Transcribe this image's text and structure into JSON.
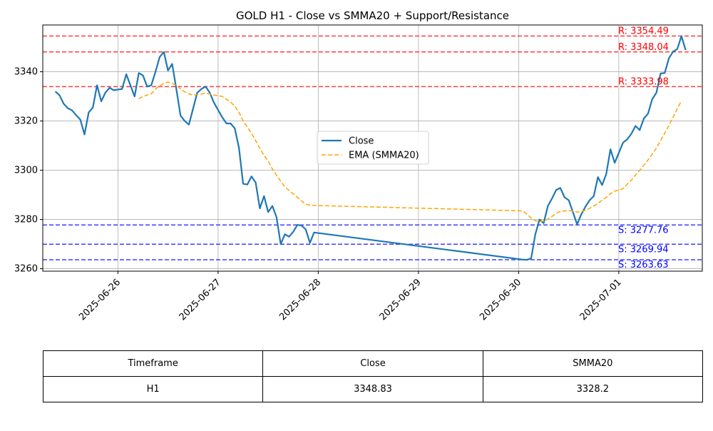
{
  "chart_data": {
    "type": "line",
    "title": "GOLD H1 - Close vs SMMA20 + Support/Resistance",
    "xlabel": "",
    "ylabel": "",
    "x_range": [
      "2025-06-25T06:00",
      "2025-07-01T20:00"
    ],
    "y_range": [
      3259,
      3359
    ],
    "y_ticks": [
      3260,
      3280,
      3300,
      3320,
      3340
    ],
    "x_ticks": [
      "2025-06-26",
      "2025-06-27",
      "2025-06-28",
      "2025-06-29",
      "2025-06-30",
      "2025-07-01"
    ],
    "grid": true,
    "legend_position": "center-right",
    "series": [
      {
        "name": "Close",
        "color": "#1f77b4",
        "style": "solid",
        "points": [
          [
            "2025-06-25T09:00",
            3332
          ],
          [
            "2025-06-25T10:00",
            3330.5
          ],
          [
            "2025-06-25T11:00",
            3327
          ],
          [
            "2025-06-25T12:00",
            3325.2
          ],
          [
            "2025-06-25T13:00",
            3324.3
          ],
          [
            "2025-06-25T14:00",
            3322.4
          ],
          [
            "2025-06-25T15:00",
            3320.5
          ],
          [
            "2025-06-25T16:00",
            3314.5
          ],
          [
            "2025-06-25T17:00",
            3323.5
          ],
          [
            "2025-06-25T18:00",
            3325.5
          ],
          [
            "2025-06-25T19:00",
            3334.5
          ],
          [
            "2025-06-25T20:00",
            3328
          ],
          [
            "2025-06-25T21:00",
            3331.5
          ],
          [
            "2025-06-25T22:00",
            3333.5
          ],
          [
            "2025-06-25T23:00",
            3332.5
          ],
          [
            "2025-06-26T01:00",
            3333
          ],
          [
            "2025-06-26T02:00",
            3339
          ],
          [
            "2025-06-26T03:00",
            3334.5
          ],
          [
            "2025-06-26T04:00",
            3330
          ],
          [
            "2025-06-26T05:00",
            3339.5
          ],
          [
            "2025-06-26T06:00",
            3338.5
          ],
          [
            "2025-06-26T07:00",
            3334
          ],
          [
            "2025-06-26T08:00",
            3334.5
          ],
          [
            "2025-06-26T09:00",
            3340
          ],
          [
            "2025-06-26T10:00",
            3346
          ],
          [
            "2025-06-26T11:00",
            3348
          ],
          [
            "2025-06-26T12:00",
            3340.5
          ],
          [
            "2025-06-26T13:00",
            3343.2
          ],
          [
            "2025-06-26T14:00",
            3333
          ],
          [
            "2025-06-26T15:00",
            3322.2
          ],
          [
            "2025-06-26T16:00",
            3320
          ],
          [
            "2025-06-26T17:00",
            3318.5
          ],
          [
            "2025-06-26T18:00",
            3325
          ],
          [
            "2025-06-26T19:00",
            3331.5
          ],
          [
            "2025-06-26T20:00",
            3333
          ],
          [
            "2025-06-26T21:00",
            3334
          ],
          [
            "2025-06-26T22:00",
            3331.5
          ],
          [
            "2025-06-26T23:00",
            3327.5
          ],
          [
            "2025-06-27T01:00",
            3321.5
          ],
          [
            "2025-06-27T02:00",
            3319
          ],
          [
            "2025-06-27T03:00",
            3319
          ],
          [
            "2025-06-27T04:00",
            3317
          ],
          [
            "2025-06-27T05:00",
            3309
          ],
          [
            "2025-06-27T06:00",
            3294.5
          ],
          [
            "2025-06-27T07:00",
            3294.2
          ],
          [
            "2025-06-27T08:00",
            3297.5
          ],
          [
            "2025-06-27T09:00",
            3295
          ],
          [
            "2025-06-27T10:00",
            3284.5
          ],
          [
            "2025-06-27T11:00",
            3289.5
          ],
          [
            "2025-06-27T12:00",
            3283
          ],
          [
            "2025-06-27T13:00",
            3285.5
          ],
          [
            "2025-06-27T14:00",
            3281
          ],
          [
            "2025-06-27T15:00",
            3270
          ],
          [
            "2025-06-27T16:00",
            3274
          ],
          [
            "2025-06-27T17:00",
            3273
          ],
          [
            "2025-06-27T18:00",
            3275
          ],
          [
            "2025-06-27T19:00",
            3277.8
          ],
          [
            "2025-06-27T20:00",
            3277.5
          ],
          [
            "2025-06-27T21:00",
            3276
          ],
          [
            "2025-06-27T22:00",
            3270.5
          ],
          [
            "2025-06-27T23:00",
            3274.7
          ],
          [
            "2025-06-30T01:00",
            3263.7
          ],
          [
            "2025-06-30T02:00",
            3263.6
          ],
          [
            "2025-06-30T03:00",
            3264.2
          ],
          [
            "2025-06-30T04:00",
            3274
          ],
          [
            "2025-06-30T05:00",
            3280
          ],
          [
            "2025-06-30T06:00",
            3278.5
          ],
          [
            "2025-06-30T07:00",
            3285.5
          ],
          [
            "2025-06-30T08:00",
            3288.5
          ],
          [
            "2025-06-30T09:00",
            3292
          ],
          [
            "2025-06-30T10:00",
            3292.8
          ],
          [
            "2025-06-30T11:00",
            3289
          ],
          [
            "2025-06-30T12:00",
            3287.8
          ],
          [
            "2025-06-30T13:00",
            3283
          ],
          [
            "2025-06-30T14:00",
            3278
          ],
          [
            "2025-06-30T15:00",
            3282
          ],
          [
            "2025-06-30T16:00",
            3285.2
          ],
          [
            "2025-06-30T17:00",
            3287.8
          ],
          [
            "2025-06-30T18:00",
            3289.5
          ],
          [
            "2025-06-30T19:00",
            3297.2
          ],
          [
            "2025-06-30T20:00",
            3294
          ],
          [
            "2025-06-30T21:00",
            3298.5
          ],
          [
            "2025-06-30T22:00",
            3308.5
          ],
          [
            "2025-06-30T23:00",
            3303
          ],
          [
            "2025-07-01T01:00",
            3311.2
          ],
          [
            "2025-07-01T02:00",
            3312.5
          ],
          [
            "2025-07-01T03:00",
            3314.8
          ],
          [
            "2025-07-01T04:00",
            3318
          ],
          [
            "2025-07-01T05:00",
            3316.3
          ],
          [
            "2025-07-01T06:00",
            3321
          ],
          [
            "2025-07-01T07:00",
            3323
          ],
          [
            "2025-07-01T08:00",
            3328.8
          ],
          [
            "2025-07-01T09:00",
            3331.5
          ],
          [
            "2025-07-01T10:00",
            3339.3
          ],
          [
            "2025-07-01T11:00",
            3339.5
          ],
          [
            "2025-07-01T12:00",
            3345.5
          ],
          [
            "2025-07-01T13:00",
            3348.2
          ],
          [
            "2025-07-01T14:00",
            3349.2
          ],
          [
            "2025-07-01T15:00",
            3354.5
          ],
          [
            "2025-07-01T16:00",
            3348.83
          ]
        ]
      },
      {
        "name": "EMA (SMMA20)",
        "color": "#ffa500",
        "style": "dashed",
        "points": [
          [
            "2025-06-26T05:00",
            3329
          ],
          [
            "2025-06-26T06:00",
            3330
          ],
          [
            "2025-06-26T07:00",
            3330.5
          ],
          [
            "2025-06-26T08:00",
            3331
          ],
          [
            "2025-06-26T09:00",
            3333
          ],
          [
            "2025-06-26T10:00",
            3334.3
          ],
          [
            "2025-06-26T11:00",
            3335.3
          ],
          [
            "2025-06-26T12:00",
            3335.8
          ],
          [
            "2025-06-26T13:00",
            3335.3
          ],
          [
            "2025-06-26T14:00",
            3334.5
          ],
          [
            "2025-06-26T15:00",
            3333
          ],
          [
            "2025-06-26T16:00",
            3331.8
          ],
          [
            "2025-06-26T17:00",
            3331
          ],
          [
            "2025-06-26T18:00",
            3330.5
          ],
          [
            "2025-06-26T19:00",
            3330.8
          ],
          [
            "2025-06-26T20:00",
            3331
          ],
          [
            "2025-06-26T21:00",
            3331.2
          ],
          [
            "2025-06-26T22:00",
            3331
          ],
          [
            "2025-06-26T23:00",
            3330.5
          ],
          [
            "2025-06-27T01:00",
            3330
          ],
          [
            "2025-06-27T02:00",
            3328.8
          ],
          [
            "2025-06-27T03:00",
            3327.7
          ],
          [
            "2025-06-27T04:00",
            3326
          ],
          [
            "2025-06-27T05:00",
            3323.5
          ],
          [
            "2025-06-27T06:00",
            3320
          ],
          [
            "2025-06-27T07:00",
            3317.5
          ],
          [
            "2025-06-27T08:00",
            3315
          ],
          [
            "2025-06-27T09:00",
            3312
          ],
          [
            "2025-06-27T10:00",
            3309
          ],
          [
            "2025-06-27T11:00",
            3306
          ],
          [
            "2025-06-27T12:00",
            3303.7
          ],
          [
            "2025-06-27T13:00",
            3300.5
          ],
          [
            "2025-06-27T14:00",
            3298
          ],
          [
            "2025-06-27T15:00",
            3295.5
          ],
          [
            "2025-06-27T16:00",
            3293.2
          ],
          [
            "2025-06-27T17:00",
            3291.8
          ],
          [
            "2025-06-27T18:00",
            3290.3
          ],
          [
            "2025-06-27T19:00",
            3289
          ],
          [
            "2025-06-27T20:00",
            3287.5
          ],
          [
            "2025-06-27T21:00",
            3286.2
          ],
          [
            "2025-06-27T22:00",
            3285.8
          ],
          [
            "2025-06-27T23:00",
            3285.7
          ],
          [
            "2025-06-30T01:00",
            3283.5
          ],
          [
            "2025-06-30T02:00",
            3282.2
          ],
          [
            "2025-06-30T03:00",
            3280.5
          ],
          [
            "2025-06-30T04:00",
            3279.5
          ],
          [
            "2025-06-30T05:00",
            3279.2
          ],
          [
            "2025-06-30T06:00",
            3279.3
          ],
          [
            "2025-06-30T07:00",
            3280.2
          ],
          [
            "2025-06-30T08:00",
            3281.2
          ],
          [
            "2025-06-30T09:00",
            3282.5
          ],
          [
            "2025-06-30T10:00",
            3283.3
          ],
          [
            "2025-06-30T11:00",
            3283.5
          ],
          [
            "2025-06-30T12:00",
            3283.6
          ],
          [
            "2025-06-30T13:00",
            3283.4
          ],
          [
            "2025-06-30T14:00",
            3283
          ],
          [
            "2025-06-30T15:00",
            3283.2
          ],
          [
            "2025-06-30T16:00",
            3283.7
          ],
          [
            "2025-06-30T17:00",
            3284.5
          ],
          [
            "2025-06-30T18:00",
            3285.5
          ],
          [
            "2025-06-30T19:00",
            3286.6
          ],
          [
            "2025-06-30T20:00",
            3287.8
          ],
          [
            "2025-06-30T21:00",
            3289
          ],
          [
            "2025-06-30T22:00",
            3290.5
          ],
          [
            "2025-06-30T23:00",
            3291.5
          ],
          [
            "2025-07-01T01:00",
            3292.5
          ],
          [
            "2025-07-01T02:00",
            3294.3
          ],
          [
            "2025-07-01T03:00",
            3296
          ],
          [
            "2025-07-01T04:00",
            3298
          ],
          [
            "2025-07-01T05:00",
            3300
          ],
          [
            "2025-07-01T06:00",
            3302
          ],
          [
            "2025-07-01T07:00",
            3304.2
          ],
          [
            "2025-07-01T08:00",
            3306.5
          ],
          [
            "2025-07-01T09:00",
            3309
          ],
          [
            "2025-07-01T10:00",
            3312
          ],
          [
            "2025-07-01T11:00",
            3315
          ],
          [
            "2025-07-01T12:00",
            3318.3
          ],
          [
            "2025-07-01T13:00",
            3321.5
          ],
          [
            "2025-07-01T14:00",
            3325
          ],
          [
            "2025-07-01T15:00",
            3328.2
          ]
        ]
      }
    ],
    "resistance_levels": [
      {
        "value": 3354.49,
        "label": "R: 3354.49"
      },
      {
        "value": 3348.04,
        "label": "R: 3348.04"
      },
      {
        "value": 3333.98,
        "label": "R: 3333.98"
      }
    ],
    "support_levels": [
      {
        "value": 3277.76,
        "label": "S: 3277.76"
      },
      {
        "value": 3269.94,
        "label": "S: 3269.94"
      },
      {
        "value": 3263.63,
        "label": "S: 3263.63"
      }
    ],
    "colors": {
      "resistance": "#ff0000",
      "support": "#0000ff",
      "close": "#1f77b4",
      "smma": "#ffa500"
    }
  },
  "table": {
    "headers": [
      "Timeframe",
      "Close",
      "SMMA20"
    ],
    "rows": [
      [
        "H1",
        "3348.83",
        "3328.2"
      ]
    ]
  }
}
